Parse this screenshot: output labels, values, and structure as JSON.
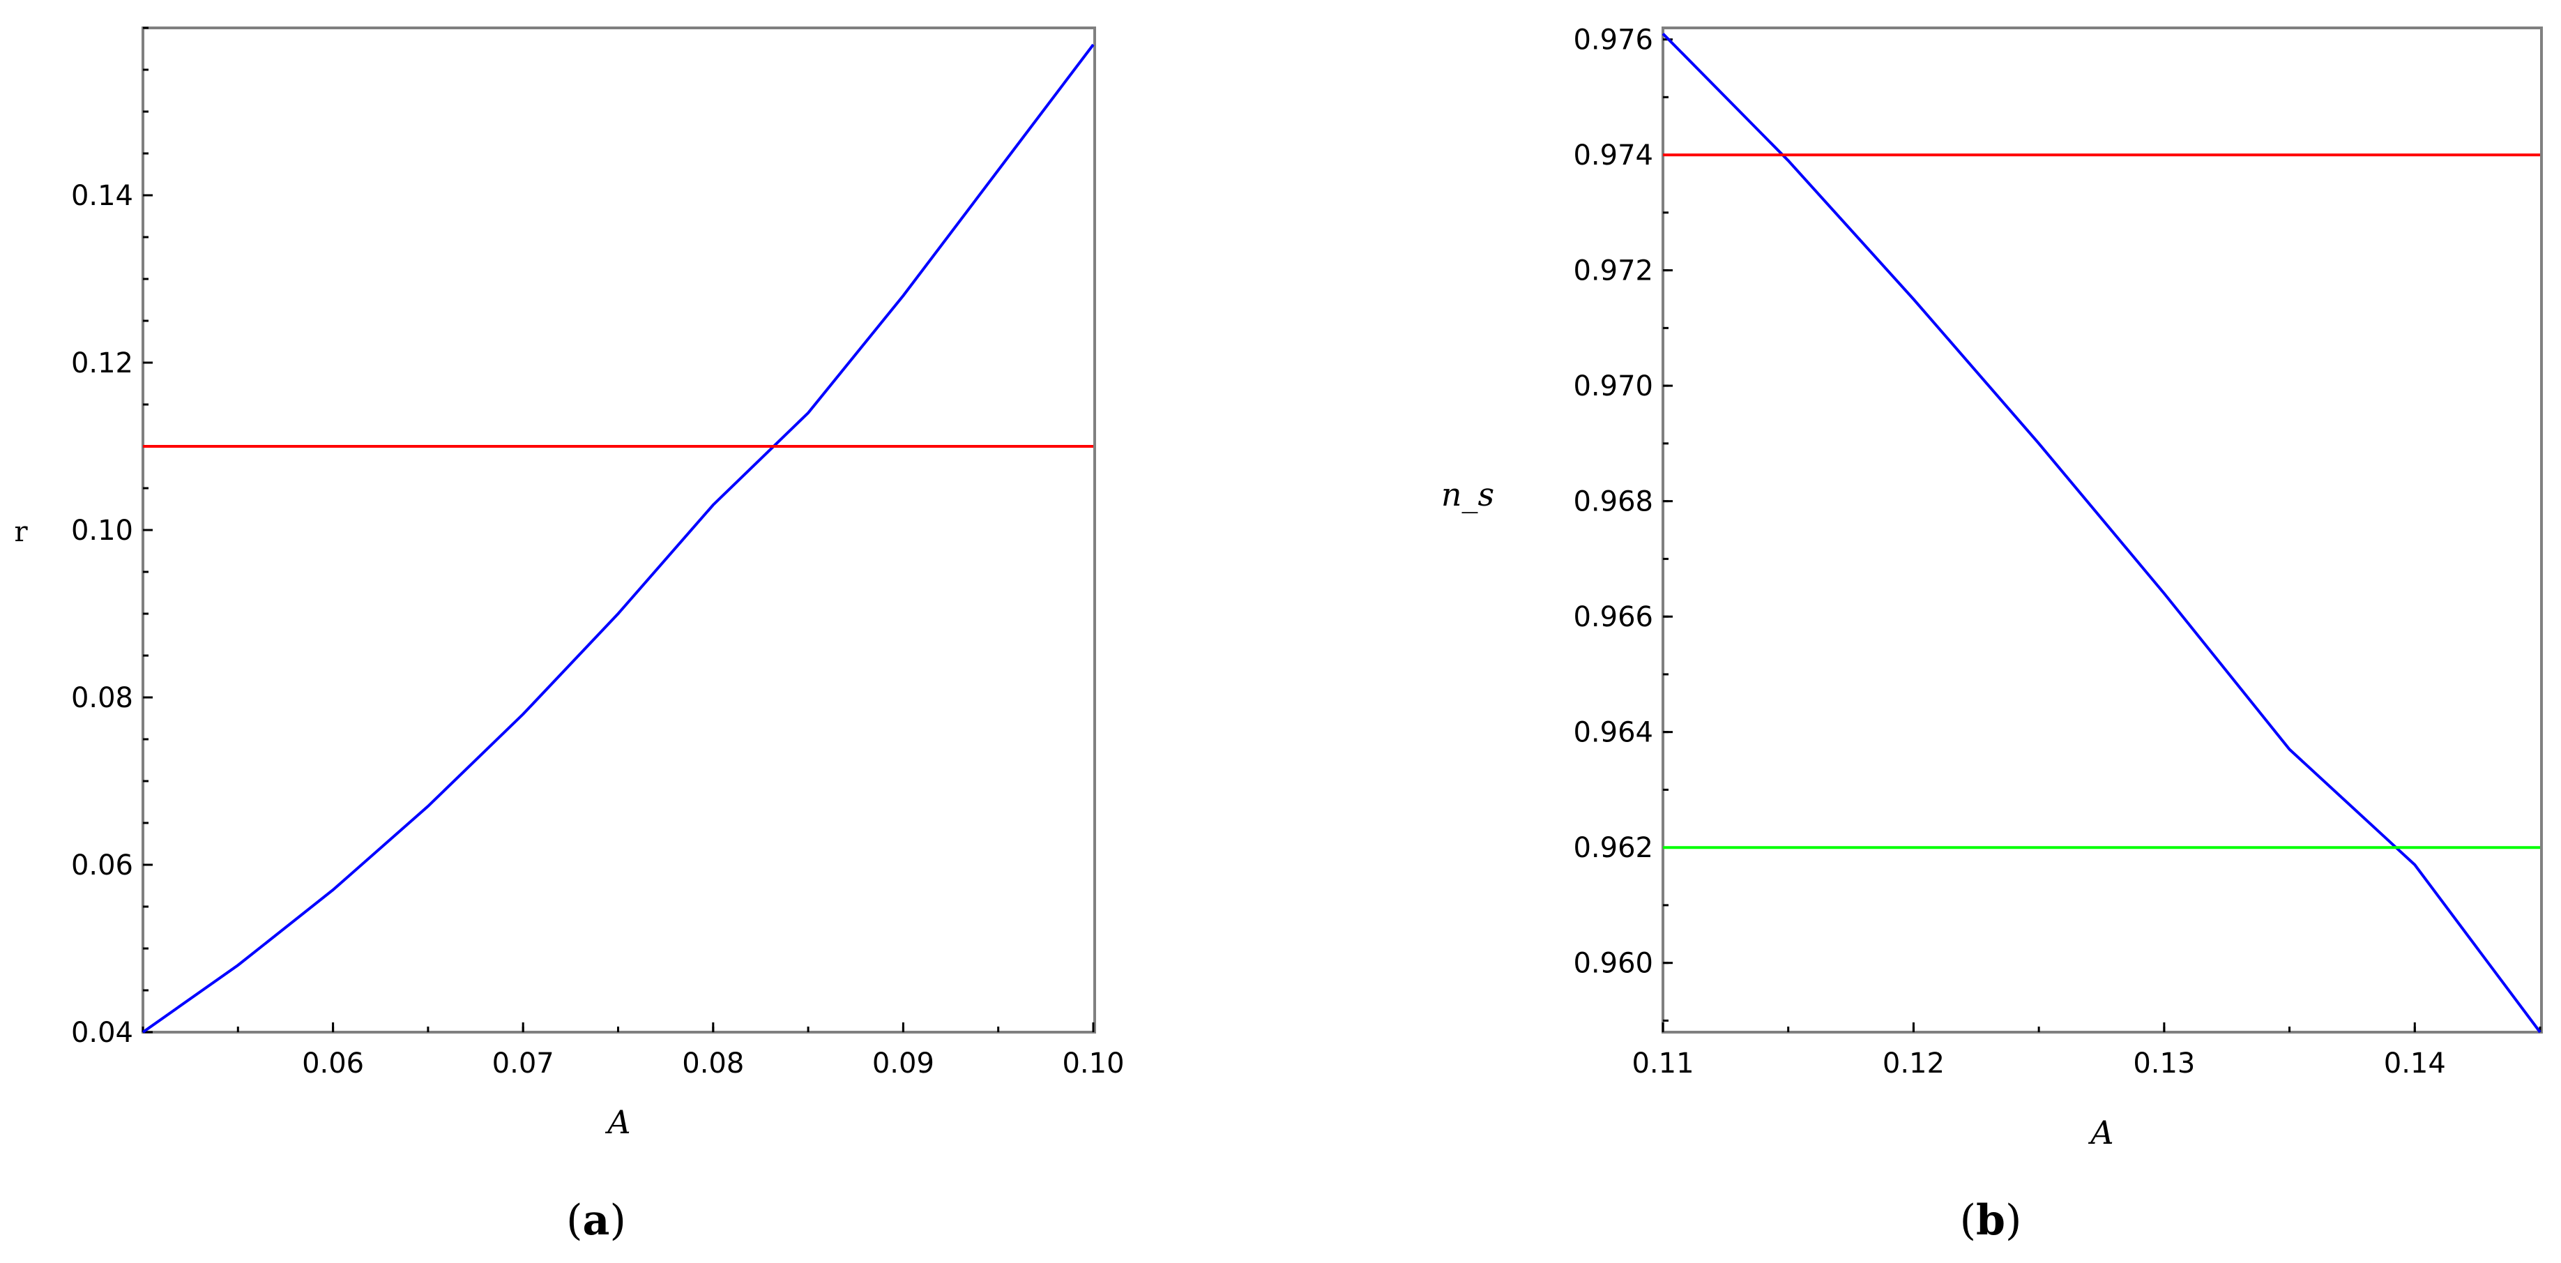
{
  "chart_data": [
    {
      "type": "line",
      "panel": "a",
      "caption_letter": "a",
      "xlabel": "A",
      "ylabel": "r",
      "xlim": [
        0.05,
        0.1
      ],
      "ylim": [
        0.04,
        0.16
      ],
      "xticks": [
        0.06,
        0.07,
        0.08,
        0.09,
        0.1
      ],
      "xtick_labels": [
        "0.06",
        "0.07",
        "0.08",
        "0.09",
        "0.10"
      ],
      "yticks": [
        0.04,
        0.06,
        0.08,
        0.1,
        0.12,
        0.14
      ],
      "ytick_labels": [
        "0.04",
        "0.06",
        "0.08",
        "0.10",
        "0.12",
        "0.14"
      ],
      "grid": false,
      "series": [
        {
          "color": "#0000ff",
          "x": [
            0.05,
            0.055,
            0.06,
            0.065,
            0.07,
            0.075,
            0.08,
            0.085,
            0.09,
            0.095,
            0.1
          ],
          "y": [
            0.04,
            0.048,
            0.057,
            0.067,
            0.078,
            0.09,
            0.103,
            0.114,
            0.128,
            0.143,
            0.158
          ]
        },
        {
          "color": "#ff0000",
          "x": [
            0.05,
            0.1
          ],
          "y": [
            0.11,
            0.11
          ]
        }
      ]
    },
    {
      "type": "line",
      "panel": "b",
      "caption_letter": "b",
      "xlabel": "A",
      "ylabel": "n_s",
      "xlim": [
        0.11,
        0.145
      ],
      "ylim": [
        0.9588,
        0.9762
      ],
      "xticks": [
        0.11,
        0.12,
        0.13,
        0.14
      ],
      "xtick_labels": [
        "0.11",
        "0.12",
        "0.13",
        "0.14"
      ],
      "yticks": [
        0.96,
        0.962,
        0.964,
        0.966,
        0.968,
        0.97,
        0.972,
        0.974,
        0.976
      ],
      "ytick_labels": [
        "0.960",
        "0.962",
        "0.964",
        "0.966",
        "0.968",
        "0.970",
        "0.972",
        "0.974",
        "0.976"
      ],
      "grid": false,
      "series": [
        {
          "color": "#0000ff",
          "x": [
            0.11,
            0.115,
            0.12,
            0.125,
            0.13,
            0.135,
            0.14,
            0.145
          ],
          "y": [
            0.9761,
            0.9739,
            0.9715,
            0.969,
            0.9664,
            0.9637,
            0.9617,
            0.9588
          ]
        },
        {
          "color": "#ff0000",
          "x": [
            0.11,
            0.145
          ],
          "y": [
            0.974,
            0.974
          ]
        },
        {
          "color": "#00ff00",
          "x": [
            0.11,
            0.145
          ],
          "y": [
            0.962,
            0.962
          ]
        }
      ]
    }
  ]
}
